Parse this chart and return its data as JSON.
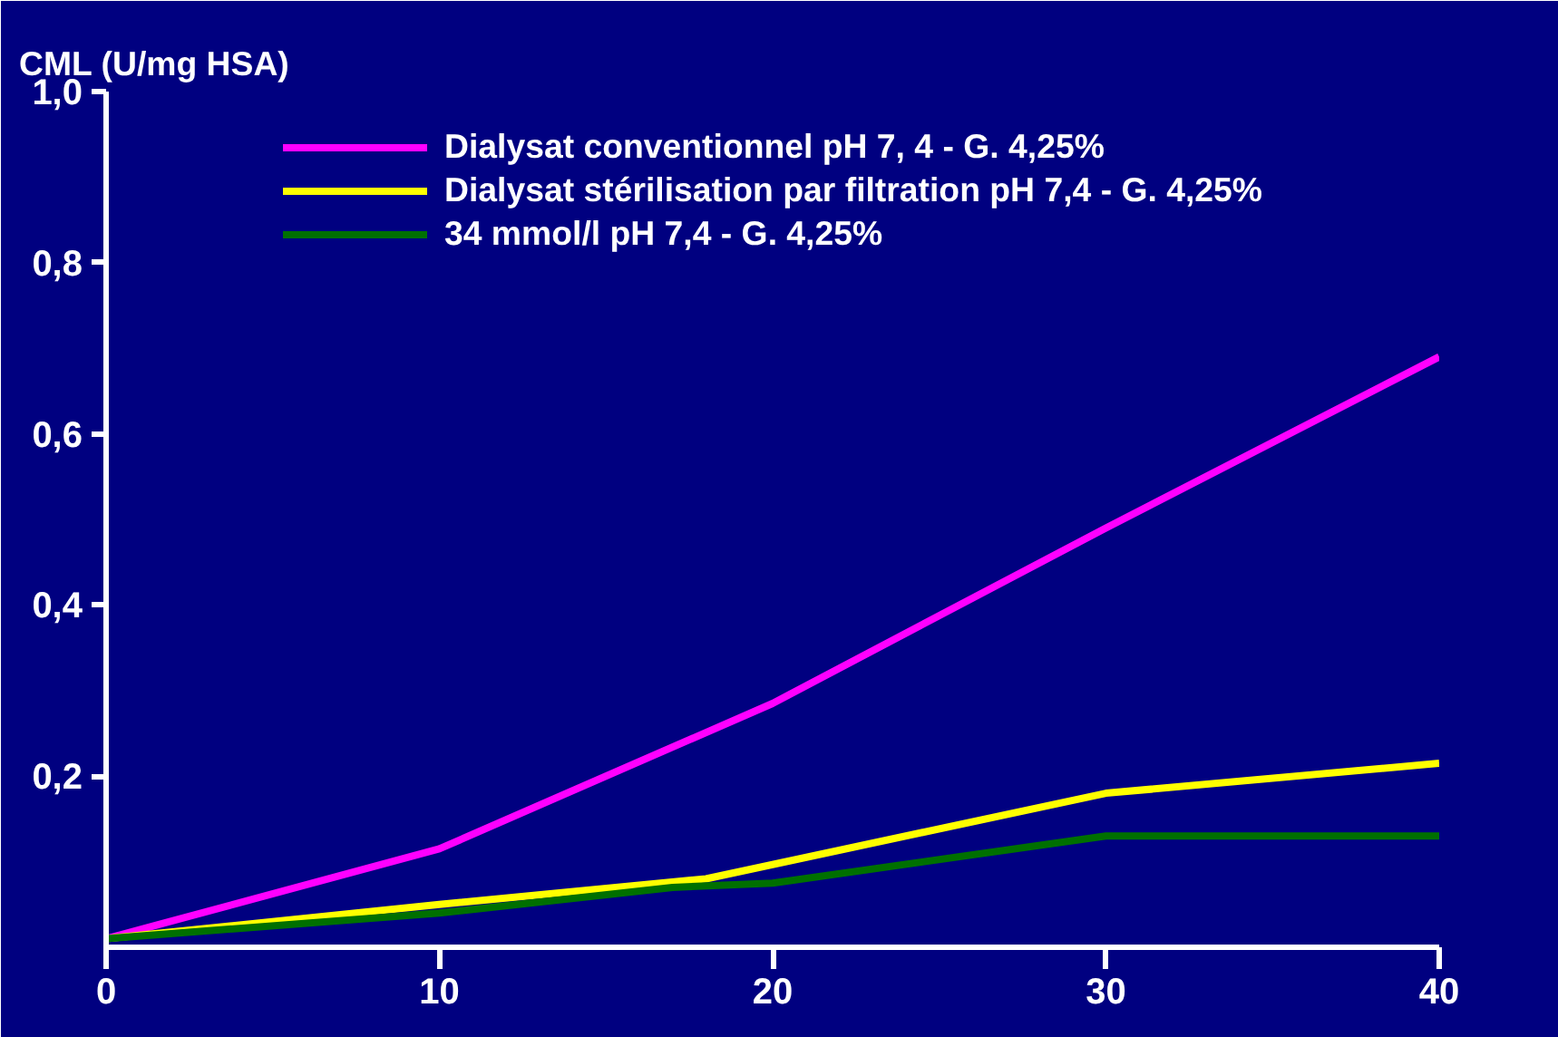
{
  "chart_data": {
    "type": "line",
    "ylabel": "CML (U/mg HSA)",
    "xlim": [
      0,
      40
    ],
    "xticks": [
      0,
      10,
      20,
      30,
      40
    ],
    "ylim": [
      0,
      1.0
    ],
    "yticks": [
      {
        "value": 0.2,
        "label": "0,2"
      },
      {
        "value": 0.4,
        "label": "0,4"
      },
      {
        "value": 0.6,
        "label": "0,6"
      },
      {
        "value": 0.8,
        "label": "0,8"
      },
      {
        "value": 1.0,
        "label": "1,0"
      }
    ],
    "grid": false,
    "legend": "top",
    "marker": "none",
    "line_style": "solid",
    "series": [
      {
        "name": "Dialysat conventionnel pH 7, 4 - G. 4,25%",
        "color": "#ff00ff",
        "x": [
          0,
          10,
          20,
          30,
          40
        ],
        "values": [
          0.01,
          0.115,
          0.285,
          0.49,
          0.69
        ]
      },
      {
        "name": "Dialysat stérilisation par filtration pH 7,4 - G. 4,25%",
        "color": "#ffff00",
        "x": [
          0,
          10,
          18,
          30,
          40
        ],
        "values": [
          0.01,
          0.05,
          0.08,
          0.18,
          0.215
        ]
      },
      {
        "name": "34 mmol/l pH 7,4 - G. 4,25%",
        "color": "#007000",
        "x": [
          0,
          10,
          17,
          20,
          30,
          40
        ],
        "values": [
          0.01,
          0.04,
          0.07,
          0.075,
          0.13,
          0.13
        ]
      }
    ]
  }
}
